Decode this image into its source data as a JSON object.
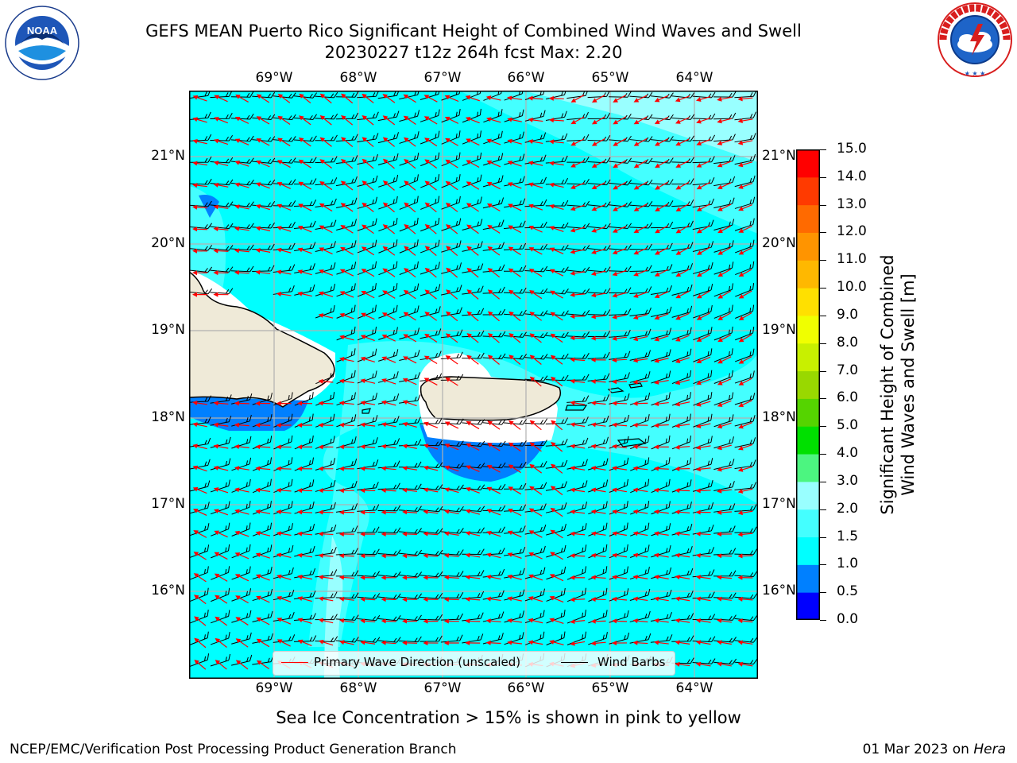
{
  "title": {
    "line1": "GEFS MEAN Puerto Rico Significant Height of Combined Wind Waves and Swell",
    "line2": "20230227 t12z 264h fcst   Max: 2.20"
  },
  "logos": {
    "noaa": {
      "text": "NOAA",
      "icon": "noaa-logo-icon"
    },
    "nws": {
      "ring_text": "NATIONAL WEATHER SERVICE",
      "icon": "nws-logo-icon"
    }
  },
  "map": {
    "lon_labels": [
      "69°W",
      "68°W",
      "67°W",
      "66°W",
      "65°W",
      "64°W"
    ],
    "lat_labels": [
      "21°N",
      "20°N",
      "19°N",
      "18°N",
      "17°N",
      "16°N"
    ],
    "extent": {
      "lon_min": -70.0,
      "lon_max": -63.25,
      "lat_min": 15.05,
      "lat_max": 21.75
    },
    "colors": {
      "ocean_1_15": "#00ffff",
      "ocean_15_2": "#44ffff",
      "ocean_2_3": "#99ffff",
      "ocean_05_1": "#0080ff",
      "land": "#efead8",
      "grid": "#b0b0b0",
      "wave_arrow": "#ff0000",
      "wind_barb": "#000000"
    },
    "wave_direction": "from east-northeast",
    "wind": "easterly"
  },
  "legend": {
    "primary_wave": "Primary Wave Direction (unscaled)",
    "wind_barbs": "Wind Barbs",
    "primary_wave_color": "#ff0000",
    "wind_barbs_color": "#000000"
  },
  "colorbar": {
    "label_line1": "Significant Height of Combined",
    "label_line2": "Wind Waves and Swell [m]",
    "ticks": [
      "0.0",
      "0.5",
      "1.0",
      "1.5",
      "2.0",
      "3.0",
      "4.0",
      "5.0",
      "6.0",
      "7.0",
      "8.0",
      "9.0",
      "10.0",
      "11.0",
      "12.0",
      "13.0",
      "14.0",
      "15.0"
    ],
    "colors": [
      "#0000ff",
      "#0080ff",
      "#00ffff",
      "#44ffff",
      "#99ffff",
      "#4cf580",
      "#00e000",
      "#55d400",
      "#99d800",
      "#c8f000",
      "#f0ff00",
      "#ffe000",
      "#ffb800",
      "#ff9400",
      "#ff6a00",
      "#ff3a00",
      "#ff0000"
    ]
  },
  "footer": {
    "note": "Sea Ice Concentration > 15% is shown in pink to yellow",
    "left": "NCEP/EMC/Verification Post Processing Product Generation Branch",
    "right_prefix": "01 Mar 2023 on ",
    "right_machine": "Hera"
  }
}
